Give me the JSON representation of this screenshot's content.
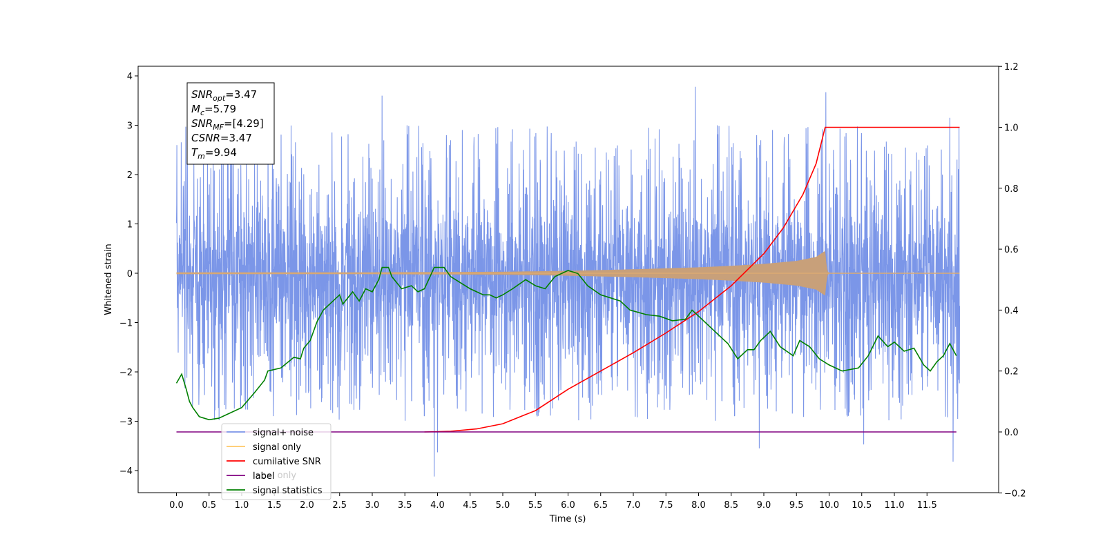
{
  "chart_data": {
    "type": "line",
    "xlabel": "Time (s)",
    "ylabel": "Whitened strain",
    "xlim": [
      -0.58,
      12.62
    ],
    "ylim_left": [
      -4.5,
      4.2
    ],
    "ylim_right": [
      -0.2,
      1.2
    ],
    "x_ticks": [
      "0.0",
      "0.5",
      "1.0",
      "1.5",
      "2.0",
      "2.5",
      "3.0",
      "3.5",
      "4.0",
      "4.5",
      "5.0",
      "5.5",
      "6.0",
      "6.5",
      "7.0",
      "7.5",
      "8.0",
      "8.5",
      "9.0",
      "9.5",
      "10.0",
      "10.5",
      "11.0",
      "11.5"
    ],
    "y_ticks_left": [
      "4",
      "3",
      "2",
      "1",
      "0",
      "−1",
      "−2",
      "−3",
      "−4"
    ],
    "y_ticks_right": [
      "1.2",
      "1.0",
      "0.8",
      "0.6",
      "0.4",
      "0.2",
      "0.0",
      "−0.2"
    ],
    "info_box": {
      "lines": [
        {
          "base": "SNR",
          "sub": "opt",
          "value": "=3.47"
        },
        {
          "base": "M",
          "sub": "c",
          "value": "=5.79"
        },
        {
          "base": "SNR",
          "sub": "MF",
          "value": "=[4.29]"
        },
        {
          "base": "CSNR",
          "sub": "",
          "value": "=3.47"
        },
        {
          "base": "T",
          "sub": "m",
          "value": "=9.94"
        }
      ]
    },
    "legend": {
      "position": "lower-left",
      "entries": [
        "signal+ noise",
        "signal only",
        "cumilative SNR",
        "label",
        "signal statistics"
      ],
      "ghost_entries": [
        "label only"
      ]
    },
    "colors": {
      "noise": "#7b96e8",
      "signal": "#c8a07a",
      "signal_legend": "#ffc866",
      "cumulative_snr": "#ff0000",
      "label": "#800080",
      "statistics": "#008000"
    },
    "series": [
      {
        "name": "signal+ noise",
        "axis": "left",
        "x_range": [
          0.0,
          12.0
        ],
        "envelope_max": 3.78,
        "envelope_min": -4.12,
        "extremes": [
          {
            "x": 3.15,
            "y": 3.6
          },
          {
            "x": 7.95,
            "y": 3.78
          },
          {
            "x": 9.95,
            "y": 3.67
          },
          {
            "x": 11.85,
            "y": 3.15
          },
          {
            "x": 3.95,
            "y": -4.12
          },
          {
            "x": 4.0,
            "y": -3.63
          },
          {
            "x": 8.93,
            "y": -3.55
          },
          {
            "x": 10.53,
            "y": -3.47
          },
          {
            "x": 11.9,
            "y": -3.82
          }
        ]
      },
      {
        "name": "signal only",
        "axis": "left",
        "amplitude": [
          [
            0.0,
            0.02
          ],
          [
            3.0,
            0.02
          ],
          [
            5.0,
            0.03
          ],
          [
            6.0,
            0.05
          ],
          [
            7.0,
            0.08
          ],
          [
            8.0,
            0.12
          ],
          [
            8.5,
            0.15
          ],
          [
            9.0,
            0.19
          ],
          [
            9.5,
            0.25
          ],
          [
            9.8,
            0.33
          ],
          [
            9.9,
            0.42
          ],
          [
            9.94,
            0.45
          ],
          [
            9.97,
            0.05
          ],
          [
            10.0,
            0.01
          ],
          [
            12.0,
            0.01
          ]
        ]
      },
      {
        "name": "cumilative SNR",
        "axis": "right",
        "points": [
          [
            3.8,
            0.0
          ],
          [
            4.2,
            0.002
          ],
          [
            4.6,
            0.01
          ],
          [
            5.0,
            0.027
          ],
          [
            5.5,
            0.07
          ],
          [
            6.0,
            0.14
          ],
          [
            6.5,
            0.2
          ],
          [
            7.0,
            0.26
          ],
          [
            7.5,
            0.325
          ],
          [
            8.0,
            0.395
          ],
          [
            8.5,
            0.48
          ],
          [
            9.0,
            0.585
          ],
          [
            9.3,
            0.67
          ],
          [
            9.6,
            0.78
          ],
          [
            9.8,
            0.88
          ],
          [
            9.94,
            1.0
          ],
          [
            12.0,
            1.0
          ]
        ]
      },
      {
        "name": "label",
        "axis": "right",
        "points": [
          [
            0.0,
            0.0
          ],
          [
            11.95,
            0.0
          ]
        ]
      },
      {
        "name": "signal statistics",
        "axis": "right",
        "points": [
          [
            0.0,
            0.16
          ],
          [
            0.08,
            0.19
          ],
          [
            0.15,
            0.14
          ],
          [
            0.2,
            0.1
          ],
          [
            0.25,
            0.08
          ],
          [
            0.35,
            0.05
          ],
          [
            0.5,
            0.04
          ],
          [
            0.65,
            0.045
          ],
          [
            0.8,
            0.06
          ],
          [
            1.0,
            0.08
          ],
          [
            1.2,
            0.13
          ],
          [
            1.35,
            0.17
          ],
          [
            1.4,
            0.2
          ],
          [
            1.6,
            0.21
          ],
          [
            1.8,
            0.245
          ],
          [
            1.9,
            0.24
          ],
          [
            1.95,
            0.275
          ],
          [
            2.05,
            0.3
          ],
          [
            2.15,
            0.36
          ],
          [
            2.25,
            0.4
          ],
          [
            2.4,
            0.43
          ],
          [
            2.5,
            0.45
          ],
          [
            2.55,
            0.42
          ],
          [
            2.7,
            0.46
          ],
          [
            2.8,
            0.43
          ],
          [
            2.9,
            0.47
          ],
          [
            3.0,
            0.46
          ],
          [
            3.1,
            0.5
          ],
          [
            3.15,
            0.54
          ],
          [
            3.25,
            0.54
          ],
          [
            3.3,
            0.51
          ],
          [
            3.45,
            0.47
          ],
          [
            3.6,
            0.48
          ],
          [
            3.7,
            0.46
          ],
          [
            3.8,
            0.47
          ],
          [
            3.95,
            0.54
          ],
          [
            4.1,
            0.54
          ],
          [
            4.2,
            0.51
          ],
          [
            4.35,
            0.49
          ],
          [
            4.5,
            0.47
          ],
          [
            4.6,
            0.46
          ],
          [
            4.7,
            0.45
          ],
          [
            4.8,
            0.45
          ],
          [
            4.9,
            0.44
          ],
          [
            5.0,
            0.45
          ],
          [
            5.15,
            0.47
          ],
          [
            5.35,
            0.5
          ],
          [
            5.5,
            0.48
          ],
          [
            5.65,
            0.47
          ],
          [
            5.8,
            0.51
          ],
          [
            6.0,
            0.53
          ],
          [
            6.15,
            0.52
          ],
          [
            6.3,
            0.48
          ],
          [
            6.5,
            0.45
          ],
          [
            6.65,
            0.44
          ],
          [
            6.8,
            0.43
          ],
          [
            6.95,
            0.4
          ],
          [
            7.2,
            0.385
          ],
          [
            7.4,
            0.38
          ],
          [
            7.6,
            0.365
          ],
          [
            7.8,
            0.37
          ],
          [
            7.9,
            0.4
          ],
          [
            8.05,
            0.37
          ],
          [
            8.25,
            0.33
          ],
          [
            8.45,
            0.29
          ],
          [
            8.6,
            0.24
          ],
          [
            8.75,
            0.27
          ],
          [
            8.85,
            0.27
          ],
          [
            8.95,
            0.3
          ],
          [
            9.1,
            0.33
          ],
          [
            9.25,
            0.28
          ],
          [
            9.45,
            0.25
          ],
          [
            9.55,
            0.3
          ],
          [
            9.7,
            0.28
          ],
          [
            9.85,
            0.24
          ],
          [
            10.0,
            0.22
          ],
          [
            10.2,
            0.2
          ],
          [
            10.45,
            0.21
          ],
          [
            10.6,
            0.25
          ],
          [
            10.75,
            0.315
          ],
          [
            10.9,
            0.28
          ],
          [
            11.0,
            0.295
          ],
          [
            11.15,
            0.265
          ],
          [
            11.3,
            0.275
          ],
          [
            11.45,
            0.22
          ],
          [
            11.55,
            0.2
          ],
          [
            11.65,
            0.23
          ],
          [
            11.75,
            0.25
          ],
          [
            11.85,
            0.29
          ],
          [
            11.95,
            0.25
          ]
        ]
      }
    ]
  }
}
